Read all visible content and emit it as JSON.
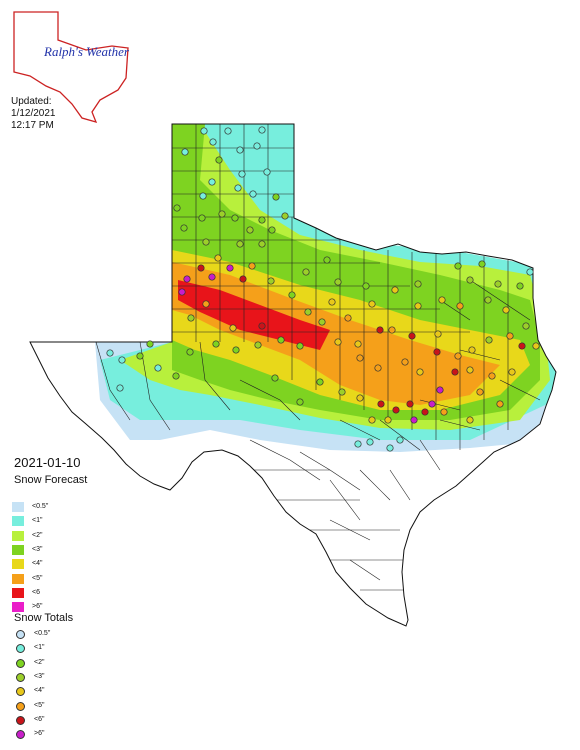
{
  "logo": {
    "text": "Ralph's Weather"
  },
  "updated": {
    "line1": "Updated:",
    "line2": "1/12/2021",
    "line3": "12:17 PM"
  },
  "map_date": "2021-01-10",
  "forecast_legend": {
    "title": "Snow Forecast",
    "items": [
      {
        "label": "<0.5\"",
        "color": "#c6e2f5"
      },
      {
        "label": "<1\"",
        "color": "#77eedd"
      },
      {
        "label": "<2\"",
        "color": "#b8f03c"
      },
      {
        "label": "<3\"",
        "color": "#7ed321"
      },
      {
        "label": "<4\"",
        "color": "#e8d81a"
      },
      {
        "label": "<5\"",
        "color": "#f5a01a"
      },
      {
        "label": "<6",
        "color": "#e8141a"
      },
      {
        "label": ">6\"",
        "color": "#ea1ec9"
      }
    ]
  },
  "totals_legend": {
    "title": "Snow Totals",
    "items": [
      {
        "label": "<0.5\"",
        "color": "#c6e2f5"
      },
      {
        "label": "<1\"",
        "color": "#77eedd"
      },
      {
        "label": "<2\"",
        "color": "#7ed321"
      },
      {
        "label": "<3\"",
        "color": "#9ccf2a"
      },
      {
        "label": "<4\"",
        "color": "#e8c81a"
      },
      {
        "label": "<5\"",
        "color": "#f5a01a"
      },
      {
        "label": "<6\"",
        "color": "#c8141a"
      },
      {
        "label": ">6\"",
        "color": "#c81ec9"
      }
    ]
  },
  "colors": {
    "county_line": "#222222",
    "logo_outline": "#cc2222",
    "logo_text": "#2233aa"
  }
}
